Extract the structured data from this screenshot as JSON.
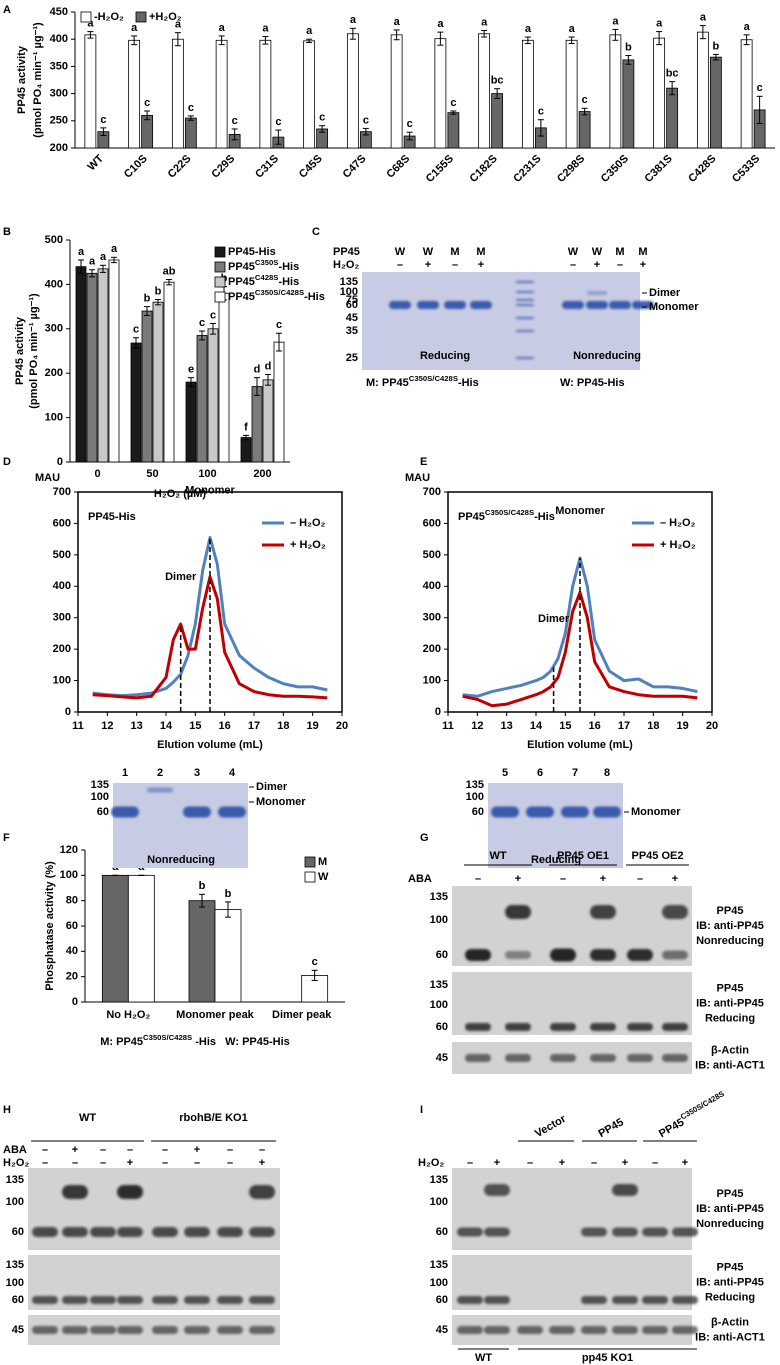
{
  "panel_labels": [
    "A",
    "B",
    "C",
    "D",
    "E",
    "F",
    "G",
    "H",
    "I"
  ],
  "chart_data": [
    {
      "type": "bar",
      "ylabel": [
        "PP45 activity",
        "(pmol PO₄ min⁻¹ µg⁻¹)"
      ],
      "categories": [
        "WT",
        "C10S",
        "C22S",
        "C29S",
        "C31S",
        "C45S",
        "C47S",
        "C68S",
        "C155S",
        "C182S",
        "C231S",
        "C298S",
        "C350S",
        "C381S",
        "C428S",
        "C533S"
      ],
      "series": [
        {
          "name": "-H₂O₂",
          "color": "#ffffff",
          "values": [
            408,
            398,
            400,
            398,
            398,
            397,
            410,
            408,
            401,
            410,
            398,
            398,
            408,
            402,
            413,
            399
          ],
          "errors": [
            6,
            8,
            12,
            8,
            7,
            3,
            10,
            9,
            12,
            6,
            6,
            6,
            10,
            12,
            12,
            9
          ],
          "letters": [
            "a",
            "a",
            "a",
            "a",
            "a",
            "a",
            "a",
            "a",
            "a",
            "a",
            "a",
            "a",
            "a",
            "a",
            "a",
            "a"
          ]
        },
        {
          "name": "+H₂O₂",
          "color": "#666666",
          "values": [
            230,
            260,
            255,
            225,
            220,
            235,
            230,
            222,
            265,
            300,
            237,
            267,
            362,
            310,
            367,
            270
          ],
          "errors": [
            7,
            8,
            4,
            10,
            13,
            6,
            6,
            7,
            3,
            9,
            15,
            6,
            8,
            12,
            5,
            25
          ],
          "letters": [
            "c",
            "c",
            "c",
            "c",
            "c",
            "c",
            "c",
            "c",
            "c",
            "bc",
            "c",
            "c",
            "b",
            "bc",
            "b",
            "c"
          ]
        }
      ],
      "ylim": [
        200,
        450
      ],
      "yticks": [
        200,
        250,
        300,
        350,
        400,
        450
      ],
      "legend": "top-left"
    },
    {
      "type": "bar",
      "ylabel": [
        "PP45 activity",
        "(pmol PO₄ min⁻¹ µg⁻¹)"
      ],
      "xlabel": "H₂O₂ (µM)",
      "categories": [
        "0",
        "50",
        "100",
        "200"
      ],
      "series": [
        {
          "name": "PP45-His",
          "color": "#1a1a1a",
          "values": [
            440,
            268,
            180,
            55
          ],
          "errors": [
            15,
            12,
            10,
            5
          ],
          "letters": [
            "a",
            "c",
            "e",
            "f"
          ]
        },
        {
          "name": "PP45C350S-His",
          "color": "#7a7a7a",
          "values": [
            425,
            340,
            285,
            170
          ],
          "errors": [
            8,
            10,
            10,
            20
          ],
          "letters": [
            "a",
            "b",
            "c",
            "d"
          ]
        },
        {
          "name": "PP45C428S-His",
          "color": "#c8c8c8",
          "values": [
            435,
            360,
            300,
            185
          ],
          "errors": [
            8,
            6,
            12,
            12
          ],
          "letters": [
            "a",
            "b",
            "c",
            "d"
          ]
        },
        {
          "name": "PP45C350S/C428S-His",
          "color": "#ffffff",
          "values": [
            455,
            405,
            380,
            270
          ],
          "errors": [
            6,
            6,
            15,
            20
          ],
          "letters": [
            "a",
            "ab",
            "b",
            "c"
          ]
        }
      ],
      "ylim": [
        0,
        500
      ],
      "yticks": [
        0,
        100,
        200,
        300,
        400,
        500
      ],
      "legend": "top-right"
    },
    {
      "type": "line",
      "title": "PP45-His",
      "ylabel": "MAU",
      "xlabel": "Elution volume (mL)",
      "x": [
        11.5,
        12,
        12.5,
        13,
        13.5,
        14,
        14.25,
        14.5,
        14.75,
        15,
        15.25,
        15.5,
        15.75,
        16,
        16.5,
        17,
        17.5,
        18,
        18.5,
        19,
        19.5
      ],
      "series": [
        {
          "name": "– H₂O₂",
          "color": "#4f81bd",
          "values": [
            60,
            55,
            52,
            55,
            60,
            75,
            95,
            120,
            180,
            280,
            450,
            555,
            470,
            280,
            180,
            140,
            110,
            90,
            80,
            80,
            70
          ]
        },
        {
          "name": "+ H₂O₂",
          "color": "#c00000",
          "values": [
            55,
            52,
            48,
            45,
            50,
            110,
            230,
            280,
            200,
            200,
            330,
            430,
            360,
            190,
            90,
            65,
            55,
            50,
            50,
            48,
            45
          ]
        }
      ],
      "xlim": [
        11,
        20
      ],
      "xticks": [
        11,
        12,
        13,
        14,
        15,
        16,
        17,
        18,
        19,
        20
      ],
      "ylim": [
        0,
        700
      ],
      "yticks": [
        0,
        100,
        200,
        300,
        400,
        500,
        600,
        700
      ],
      "annotations": [
        {
          "text": "Dimer",
          "x": 14.5
        },
        {
          "text": "Monomer",
          "x": 15.5
        }
      ],
      "legend": "top-right"
    },
    {
      "type": "line",
      "title": "PP45C350S/C428S-His",
      "ylabel": "MAU",
      "xlabel": "Elution volume (mL)",
      "x": [
        11.5,
        12,
        12.5,
        13,
        13.5,
        14,
        14.25,
        14.5,
        14.75,
        15,
        15.25,
        15.5,
        15.75,
        16,
        16.5,
        17,
        17.5,
        18,
        18.5,
        19,
        19.5
      ],
      "series": [
        {
          "name": "– H₂O₂",
          "color": "#4f81bd",
          "values": [
            55,
            50,
            65,
            75,
            85,
            100,
            110,
            130,
            170,
            250,
            400,
            490,
            400,
            230,
            130,
            100,
            105,
            80,
            80,
            75,
            65
          ]
        },
        {
          "name": "+ H₂O₂",
          "color": "#c00000",
          "values": [
            50,
            40,
            20,
            25,
            40,
            55,
            65,
            80,
            110,
            190,
            320,
            380,
            300,
            160,
            80,
            65,
            55,
            50,
            50,
            50,
            45
          ]
        }
      ],
      "xlim": [
        11,
        20
      ],
      "xticks": [
        11,
        12,
        13,
        14,
        15,
        16,
        17,
        18,
        19,
        20
      ],
      "ylim": [
        0,
        700
      ],
      "yticks": [
        0,
        100,
        200,
        300,
        400,
        500,
        600,
        700
      ],
      "annotations": [
        {
          "text": "Dimer",
          "x": 14.6
        },
        {
          "text": "Monomer",
          "x": 15.5
        }
      ],
      "legend": "top-right"
    },
    {
      "type": "bar",
      "ylabel": "Phosphatase activity (%)",
      "categories": [
        "No H₂O₂",
        "Monomer peak",
        "Dimer peak"
      ],
      "series": [
        {
          "name": "M",
          "color": "#666666",
          "values": [
            100,
            80,
            null
          ],
          "errors": [
            0,
            5,
            null
          ],
          "letters": [
            "a",
            "b",
            null
          ]
        },
        {
          "name": "W",
          "color": "#ffffff",
          "values": [
            100,
            73,
            21
          ],
          "errors": [
            0,
            6,
            4
          ],
          "letters": [
            "a",
            "b",
            "c"
          ]
        }
      ],
      "ylim": [
        0,
        120
      ],
      "yticks": [
        0,
        20,
        40,
        60,
        80,
        100,
        120
      ],
      "legend": "top-right",
      "caption": "M: PP45C350S/C428S -His   W: PP45-His"
    }
  ],
  "gels": [
    {
      "header": [
        {
          "label": "PP45",
          "cols": [
            "W",
            "W",
            "M",
            "M",
            "W",
            "W",
            "M",
            "M"
          ]
        },
        {
          "label": "H₂O₂",
          "cols": [
            "–",
            "+",
            "–",
            "+",
            "–",
            "+",
            "–",
            "+"
          ]
        }
      ],
      "markers": [
        135,
        100,
        75,
        60,
        45,
        35,
        25
      ],
      "right_labels": [
        "Dimer",
        "Monomer"
      ],
      "sections": [
        "Reducing",
        "Nonreducing"
      ],
      "caption": [
        "M: PP45C350S/C428S-His",
        "W: PP45-His"
      ]
    },
    {
      "lanes": [
        "1",
        "2",
        "3",
        "4"
      ],
      "markers": [
        135,
        100,
        60
      ],
      "right_labels": [
        "Dimer",
        "Monomer"
      ],
      "sections": [
        "Nonreducing"
      ]
    },
    {
      "lanes": [
        "5",
        "6",
        "7",
        "8"
      ],
      "markers": [
        135,
        100,
        60
      ],
      "right_labels": [
        "Monomer"
      ],
      "sections": [
        "Reducing"
      ]
    },
    {
      "groups": [
        "WT",
        "PP45 OE1",
        "PP45 OE2"
      ],
      "header": [
        {
          "label": "ABA",
          "cols": [
            "–",
            "+",
            "–",
            "+",
            "–",
            "+"
          ]
        }
      ],
      "blots": [
        {
          "markers": [
            135,
            100,
            60
          ],
          "labels": [
            "PP45",
            "IB: anti-PP45",
            "Nonreducing"
          ]
        },
        {
          "markers": [
            135,
            100,
            60
          ],
          "labels": [
            "PP45",
            "IB: anti-PP45",
            "Reducing"
          ]
        },
        {
          "markers": [
            45
          ],
          "labels": [
            "β-Actin",
            "IB: anti-ACT1"
          ]
        }
      ]
    },
    {
      "groups": [
        "WT",
        "rbohB/E KO1"
      ],
      "header": [
        {
          "label": "ABA",
          "cols": [
            "–",
            "+",
            "–",
            "–",
            "–",
            "+",
            "–",
            "–"
          ]
        },
        {
          "label": "H₂O₂",
          "cols": [
            "–",
            "–",
            "–",
            "+",
            "–",
            "–",
            "–",
            "+"
          ]
        }
      ],
      "blots": [
        {
          "markers": [
            135,
            100,
            60
          ],
          "labels": [
            "PP45",
            "IB: anti-PP45",
            "Nonreducing"
          ]
        },
        {
          "markers": [
            135,
            100,
            60
          ],
          "labels": [
            "PP45",
            "IB: anti-PP45",
            "Reducing"
          ]
        },
        {
          "markers": [
            45
          ],
          "labels": [
            "β-Actin",
            "IB: anti-ACT1"
          ]
        }
      ]
    },
    {
      "groups": [
        "Vector",
        "PP45",
        "PP45C350S/C428S"
      ],
      "bottom_groups": [
        "WT",
        "pp45 KO1"
      ],
      "header": [
        {
          "label": "H₂O₂",
          "cols": [
            "–",
            "+",
            "–",
            "+",
            "–",
            "+",
            "–",
            "+"
          ]
        }
      ],
      "blots": [
        {
          "markers": [
            135,
            100,
            60
          ],
          "labels": [
            "PP45",
            "IB: anti-PP45",
            "Nonreducing"
          ]
        },
        {
          "markers": [
            135,
            100,
            60
          ],
          "labels": [
            "PP45",
            "IB: anti-PP45",
            "Reducing"
          ]
        },
        {
          "markers": [
            45
          ],
          "labels": [
            "β-Actin",
            "IB: anti-ACT1"
          ]
        }
      ]
    }
  ]
}
